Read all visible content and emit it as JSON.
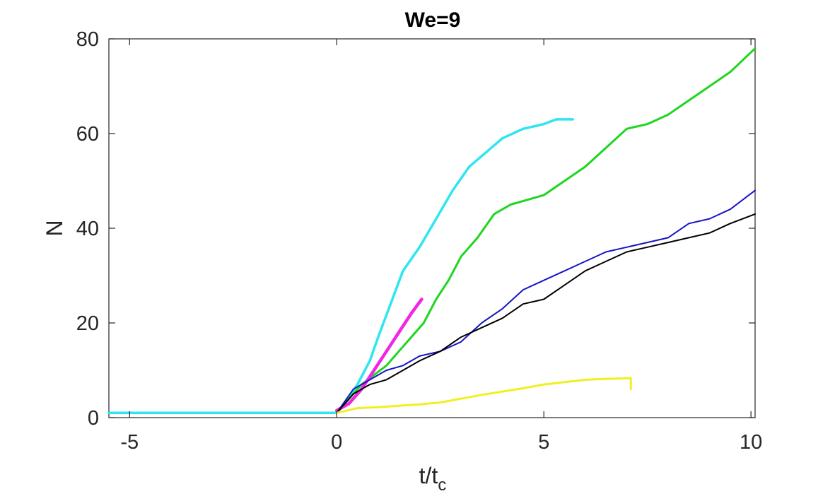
{
  "chart_data": {
    "type": "line",
    "title": "We=9",
    "xlabel": "t/t",
    "xlabel_subscript": "c",
    "ylabel": "N",
    "xlim": [
      -5.5,
      10.1
    ],
    "ylim": [
      0,
      80
    ],
    "xticks": [
      -5,
      0,
      5,
      10
    ],
    "yticks": [
      0,
      20,
      40,
      60,
      80
    ],
    "xtick_labels": [
      "-5",
      "0",
      "5",
      "10"
    ],
    "ytick_labels": [
      "0",
      "20",
      "40",
      "60",
      "80"
    ],
    "grid": false,
    "series": [
      {
        "name": "cyan",
        "color": "#2ee6f0",
        "width": 3.5,
        "x": [
          -5.5,
          0,
          0.2,
          0.5,
          0.8,
          1.0,
          1.3,
          1.6,
          2.0,
          2.4,
          2.8,
          3.2,
          3.6,
          4.0,
          4.5,
          5.0,
          5.3,
          5.5,
          5.7
        ],
        "y": [
          1,
          1,
          3,
          7,
          12,
          17,
          24,
          31,
          36,
          42,
          48,
          53,
          56,
          59,
          61,
          62,
          63,
          63,
          63
        ]
      },
      {
        "name": "green",
        "color": "#1fd61f",
        "width": 3,
        "x": [
          0,
          0.3,
          0.6,
          0.9,
          1.2,
          1.5,
          1.8,
          2.1,
          2.4,
          2.7,
          3.0,
          3.4,
          3.8,
          4.2,
          4.6,
          5.0,
          5.5,
          6.0,
          6.5,
          7.0,
          7.5,
          8.0,
          8.5,
          9.0,
          9.5,
          10.1
        ],
        "y": [
          1,
          4,
          7,
          9,
          11,
          14,
          17,
          20,
          25,
          29,
          34,
          38,
          43,
          45,
          46,
          47,
          50,
          53,
          57,
          61,
          62,
          64,
          67,
          70,
          73,
          78
        ]
      },
      {
        "name": "magenta",
        "color": "#f026e6",
        "width": 4.5,
        "x": [
          0,
          0.3,
          0.6,
          0.9,
          1.2,
          1.5,
          1.8,
          2.05
        ],
        "y": [
          1.5,
          3,
          6,
          10,
          14,
          18,
          22,
          25
        ]
      },
      {
        "name": "blue",
        "color": "#1515c4",
        "width": 2,
        "x": [
          0,
          0.4,
          0.8,
          1.2,
          1.6,
          2.0,
          2.5,
          3.0,
          3.5,
          4.0,
          4.5,
          5.0,
          5.5,
          6.0,
          6.5,
          7.0,
          7.5,
          8.0,
          8.5,
          9.0,
          9.5,
          10.1
        ],
        "y": [
          1,
          6,
          8,
          10,
          11,
          13,
          14,
          16,
          20,
          23,
          27,
          29,
          31,
          33,
          35,
          36,
          37,
          38,
          41,
          42,
          44,
          48
        ]
      },
      {
        "name": "black",
        "color": "#000000",
        "width": 2,
        "x": [
          0,
          0.4,
          0.8,
          1.2,
          1.6,
          2.0,
          2.5,
          3.0,
          3.5,
          4.0,
          4.5,
          5.0,
          5.5,
          6.0,
          6.5,
          7.0,
          7.5,
          8.0,
          8.5,
          9.0,
          9.5,
          10.1
        ],
        "y": [
          1,
          5,
          7,
          8,
          10,
          12,
          14,
          17,
          19,
          21,
          24,
          25,
          28,
          31,
          33,
          35,
          36,
          37,
          38,
          39,
          41,
          43
        ]
      },
      {
        "name": "yellow",
        "color": "#f0f020",
        "width": 3,
        "x": [
          0,
          0.5,
          1.0,
          1.5,
          2.0,
          2.5,
          3.0,
          3.5,
          4.0,
          4.5,
          5.0,
          5.5,
          6.0,
          6.5,
          7.0,
          7.1,
          7.1
        ],
        "y": [
          1,
          2,
          2.2,
          2.5,
          2.8,
          3.2,
          4,
          4.8,
          5.5,
          6.2,
          7,
          7.5,
          8,
          8.2,
          8.3,
          8.3,
          6
        ]
      }
    ]
  }
}
